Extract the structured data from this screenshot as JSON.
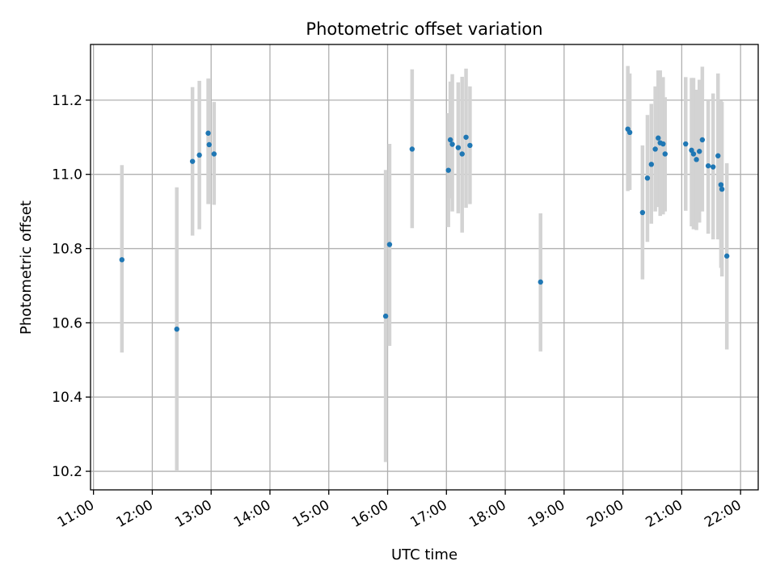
{
  "chart_data": {
    "type": "scatter",
    "title": "Photometric offset variation",
    "xlabel": "UTC time",
    "ylabel": "Photometric offset",
    "x_ticks": [
      "11:00",
      "12:00",
      "13:00",
      "14:00",
      "15:00",
      "16:00",
      "17:00",
      "18:00",
      "19:00",
      "20:00",
      "21:00",
      "22:00"
    ],
    "y_ticks": [
      "10.2",
      "10.4",
      "10.6",
      "10.8",
      "11.0",
      "11.2"
    ],
    "xlim": [
      "10:57",
      "22:18"
    ],
    "ylim": [
      10.15,
      11.35
    ],
    "grid": true,
    "colors": {
      "marker": "#1f77b4",
      "errorbar": "#d3d3d3",
      "grid": "#b0b0b0"
    },
    "points": [
      {
        "t": "11:29",
        "y": 10.77,
        "lo": 10.52,
        "hi": 11.025
      },
      {
        "t": "12:25",
        "y": 10.583,
        "lo": 10.2,
        "hi": 10.965
      },
      {
        "t": "12:41",
        "y": 11.035,
        "lo": 10.835,
        "hi": 11.235
      },
      {
        "t": "12:48",
        "y": 11.052,
        "lo": 10.852,
        "hi": 11.252
      },
      {
        "t": "12:57",
        "y": 11.111,
        "lo": 10.92,
        "hi": 11.258
      },
      {
        "t": "12:58",
        "y": 11.08,
        "lo": 10.92,
        "hi": 11.258
      },
      {
        "t": "13:03",
        "y": 11.055,
        "lo": 10.918,
        "hi": 11.195
      },
      {
        "t": "15:58",
        "y": 10.618,
        "lo": 10.225,
        "hi": 11.012
      },
      {
        "t": "16:02",
        "y": 10.811,
        "lo": 10.538,
        "hi": 11.082
      },
      {
        "t": "16:25",
        "y": 11.068,
        "lo": 10.855,
        "hi": 11.283
      },
      {
        "t": "17:02",
        "y": 11.011,
        "lo": 10.858,
        "hi": 11.165
      },
      {
        "t": "17:04",
        "y": 11.093,
        "lo": 10.935,
        "hi": 11.25
      },
      {
        "t": "17:06",
        "y": 11.081,
        "lo": 10.9,
        "hi": 11.27
      },
      {
        "t": "17:12",
        "y": 11.072,
        "lo": 10.895,
        "hi": 11.248
      },
      {
        "t": "17:16",
        "y": 11.055,
        "lo": 10.843,
        "hi": 11.263
      },
      {
        "t": "17:20",
        "y": 11.1,
        "lo": 10.91,
        "hi": 11.285
      },
      {
        "t": "17:24",
        "y": 11.078,
        "lo": 10.92,
        "hi": 11.237
      },
      {
        "t": "18:36",
        "y": 10.71,
        "lo": 10.523,
        "hi": 10.895
      },
      {
        "t": "20:05",
        "y": 11.122,
        "lo": 10.955,
        "hi": 11.292
      },
      {
        "t": "20:07",
        "y": 11.113,
        "lo": 10.958,
        "hi": 11.272
      },
      {
        "t": "20:20",
        "y": 10.897,
        "lo": 10.717,
        "hi": 11.078
      },
      {
        "t": "20:25",
        "y": 10.99,
        "lo": 10.818,
        "hi": 11.16
      },
      {
        "t": "20:29",
        "y": 11.027,
        "lo": 10.867,
        "hi": 11.19
      },
      {
        "t": "20:33",
        "y": 11.068,
        "lo": 10.9,
        "hi": 11.237
      },
      {
        "t": "20:36",
        "y": 11.098,
        "lo": 10.912,
        "hi": 11.28
      },
      {
        "t": "20:38",
        "y": 11.085,
        "lo": 10.888,
        "hi": 11.28
      },
      {
        "t": "20:41",
        "y": 11.082,
        "lo": 10.892,
        "hi": 11.262
      },
      {
        "t": "20:43",
        "y": 11.055,
        "lo": 10.9,
        "hi": 11.208
      },
      {
        "t": "21:04",
        "y": 11.082,
        "lo": 10.902,
        "hi": 11.262
      },
      {
        "t": "21:10",
        "y": 11.065,
        "lo": 10.86,
        "hi": 11.26
      },
      {
        "t": "21:12",
        "y": 11.055,
        "lo": 10.852,
        "hi": 11.26
      },
      {
        "t": "21:15",
        "y": 11.04,
        "lo": 10.85,
        "hi": 11.228
      },
      {
        "t": "21:18",
        "y": 11.062,
        "lo": 10.87,
        "hi": 11.255
      },
      {
        "t": "21:21",
        "y": 11.093,
        "lo": 10.9,
        "hi": 11.29
      },
      {
        "t": "21:27",
        "y": 11.023,
        "lo": 10.84,
        "hi": 11.2
      },
      {
        "t": "21:32",
        "y": 11.02,
        "lo": 10.825,
        "hi": 11.218
      },
      {
        "t": "21:37",
        "y": 11.05,
        "lo": 10.825,
        "hi": 11.272
      },
      {
        "t": "21:40",
        "y": 10.972,
        "lo": 10.748,
        "hi": 11.198
      },
      {
        "t": "21:41",
        "y": 10.96,
        "lo": 10.725,
        "hi": 11.195
      },
      {
        "t": "21:46",
        "y": 10.78,
        "lo": 10.528,
        "hi": 11.03
      }
    ]
  }
}
